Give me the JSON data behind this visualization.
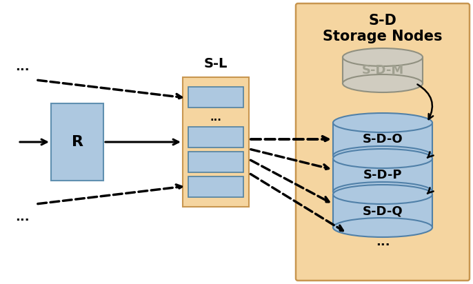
{
  "bg_color": "#ffffff",
  "storage_box_color": "#f5d5a0",
  "storage_box_edge": "#c89650",
  "r_box_color": "#adc8e0",
  "r_box_edge": "#6090b0",
  "sl_box_color": "#f5d5a0",
  "sl_box_edge": "#c89650",
  "sl_inner_color": "#adc8e0",
  "sl_inner_edge": "#5080a0",
  "sdm_cyl_color": "#d0ccc0",
  "sdm_cyl_edge": "#909080",
  "sdm_text_color": "#a0a090",
  "sdo_cyl_color": "#adc8e0",
  "sdo_cyl_edge": "#5080a8",
  "title": "S-D\nStorage Nodes",
  "title_fontsize": 15,
  "label_fontsize": 13,
  "r_label": "R",
  "sl_label": "S-L",
  "sdm_label": "S-D-M",
  "sdo_label": "S-D-O",
  "sdp_label": "S-D-P",
  "sdq_label": "S-D-Q"
}
